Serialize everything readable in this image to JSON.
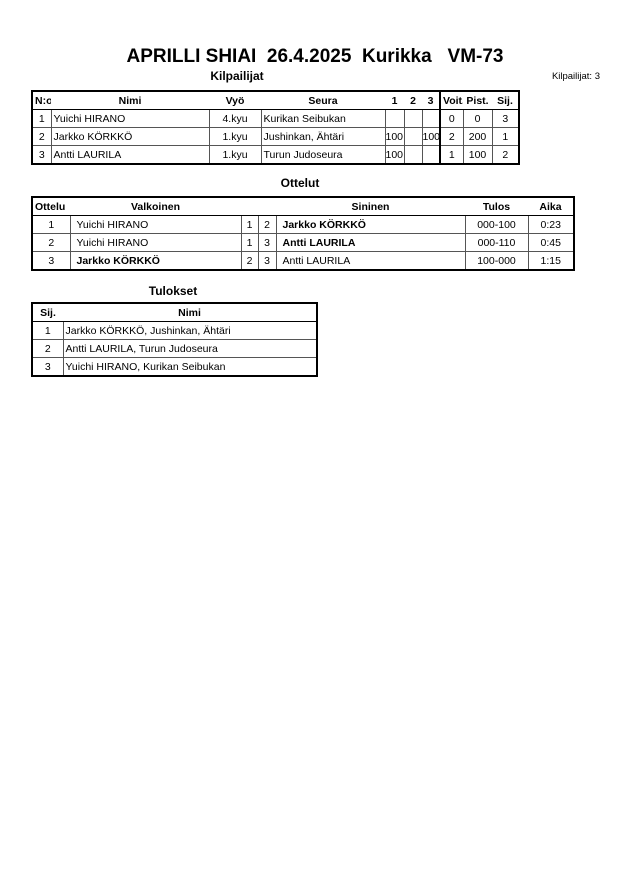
{
  "header": {
    "title": "APRILLI SHIAI  26.4.2025  Kurikka   VM-73",
    "competitor_count": "Kilpailijat: 3"
  },
  "competitors": {
    "title": "Kilpailijat",
    "columns": [
      "N:o",
      "Nimi",
      "Vyö",
      "Seura",
      "1",
      "2",
      "3",
      "Voit.",
      "Pist.",
      "Sij."
    ],
    "rows": [
      [
        "1",
        "Yuichi HIRANO",
        "4.kyu",
        "Kurikan Seibukan",
        "",
        "",
        "",
        "0",
        "0",
        "3"
      ],
      [
        "2",
        "Jarkko KÖRKKÖ",
        "1.kyu",
        "Jushinkan, Ähtäri",
        "100",
        "",
        "100",
        "2",
        "200",
        "1"
      ],
      [
        "3",
        "Antti LAURILA",
        "1.kyu",
        "Turun Judoseura",
        "100",
        "",
        "",
        "1",
        "100",
        "2"
      ]
    ]
  },
  "matches": {
    "title": "Ottelut",
    "columns": [
      "Ottelu",
      "Valkoinen",
      "",
      "",
      "Sininen",
      "Tulos",
      "Aika"
    ],
    "rows": [
      {
        "no": "1",
        "white": "Yuichi HIRANO",
        "white_no": "1",
        "blue_no": "2",
        "blue": "Jarkko KÖRKKÖ",
        "result": "000-100",
        "time": "0:23",
        "winner": "blue"
      },
      {
        "no": "2",
        "white": "Yuichi HIRANO",
        "white_no": "1",
        "blue_no": "3",
        "blue": "Antti LAURILA",
        "result": "000-110",
        "time": "0:45",
        "winner": "blue"
      },
      {
        "no": "3",
        "white": "Jarkko KÖRKKÖ",
        "white_no": "2",
        "blue_no": "3",
        "blue": "Antti LAURILA",
        "result": "100-000",
        "time": "1:15",
        "winner": "white"
      }
    ]
  },
  "results": {
    "title": "Tulokset",
    "columns": [
      "Sij.",
      "Nimi"
    ],
    "rows": [
      [
        "1",
        "Jarkko KÖRKKÖ, Jushinkan, Ähtäri"
      ],
      [
        "2",
        "Antti LAURILA, Turun Judoseura"
      ],
      [
        "3",
        "Yuichi HIRANO, Kurikan Seibukan"
      ]
    ]
  }
}
